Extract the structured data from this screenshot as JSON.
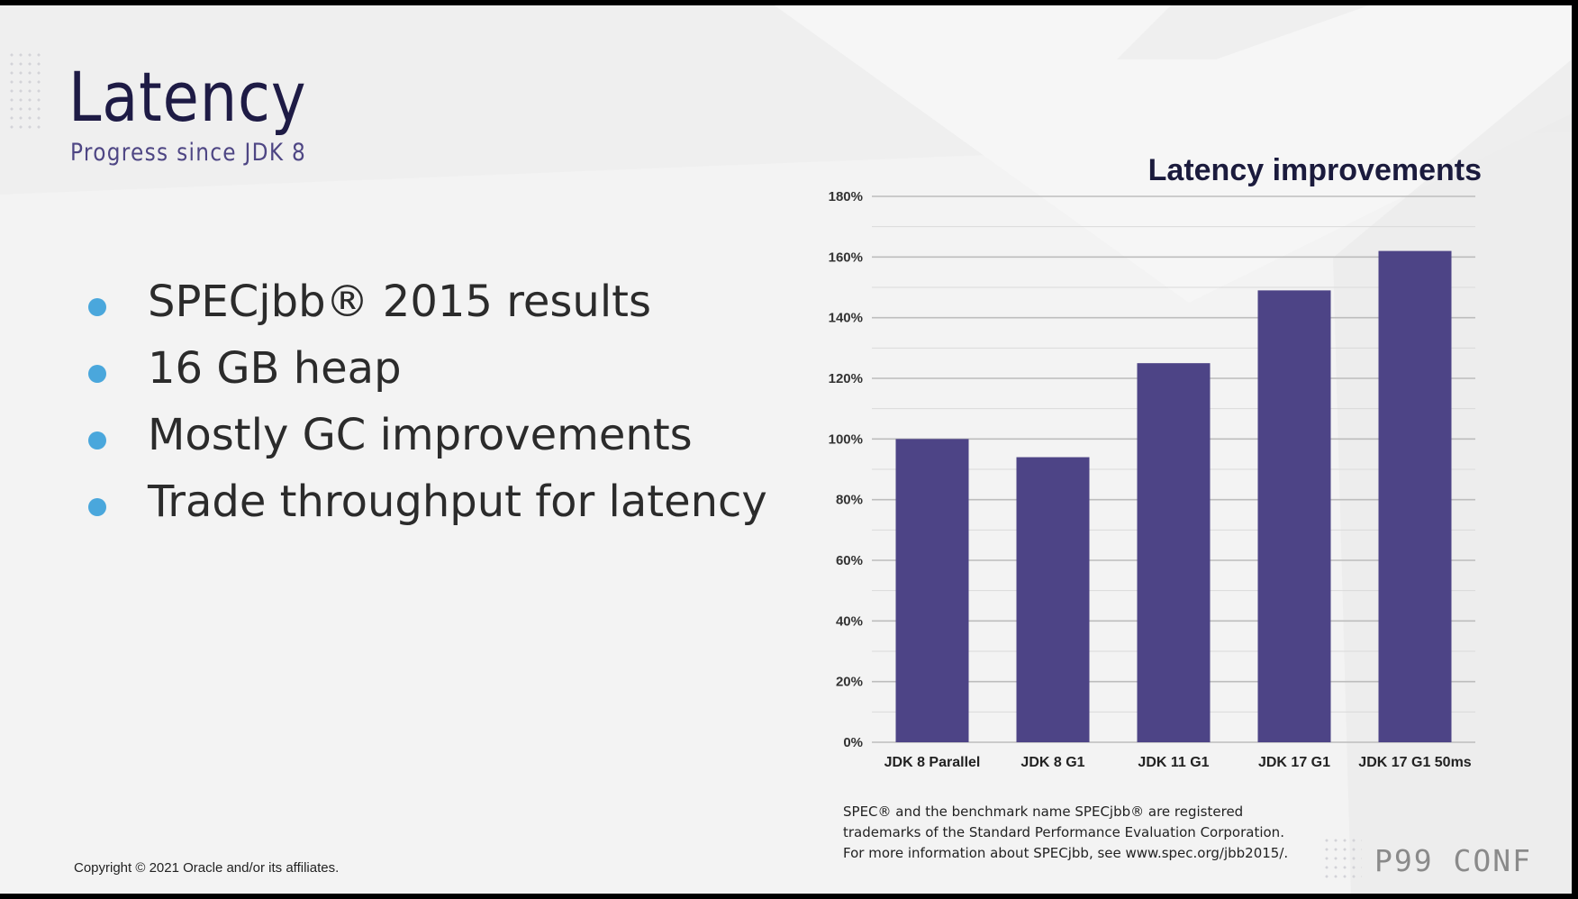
{
  "slide": {
    "title": "Latency",
    "subtitle": "Progress since JDK 8",
    "bullets": [
      "SPECjbb® 2015 results",
      "16 GB heap",
      "Mostly GC improvements",
      "Trade throughput for latency"
    ],
    "footnote_lines": [
      "SPEC® and the benchmark name SPECjbb® are registered",
      "trademarks of the Standard Performance Evaluation Corporation.",
      "For more information about SPECjbb, see www.spec.org/jbb2015/."
    ],
    "copyright": "Copyright © 2021 Oracle and/or its affiliates.",
    "brand": "P99 CONF",
    "colors": {
      "title": "#1e1b45",
      "subtitle": "#4e4684",
      "bullet": "#4aa7dc",
      "bar": "#4d4486"
    }
  },
  "chart_data": {
    "type": "bar",
    "title": "Latency improvements",
    "categories": [
      "JDK 8 Parallel",
      "JDK 8 G1",
      "JDK 11 G1",
      "JDK 17 G1",
      "JDK 17 G1 50ms"
    ],
    "values": [
      100,
      94,
      125,
      149,
      162
    ],
    "ylim": [
      0,
      180
    ],
    "yticks": [
      0,
      20,
      40,
      60,
      80,
      100,
      120,
      140,
      160,
      180
    ],
    "ytick_labels": [
      "0%",
      "20%",
      "40%",
      "60%",
      "80%",
      "100%",
      "120%",
      "140%",
      "160%",
      "180%"
    ],
    "grid": true,
    "legend": "none"
  }
}
